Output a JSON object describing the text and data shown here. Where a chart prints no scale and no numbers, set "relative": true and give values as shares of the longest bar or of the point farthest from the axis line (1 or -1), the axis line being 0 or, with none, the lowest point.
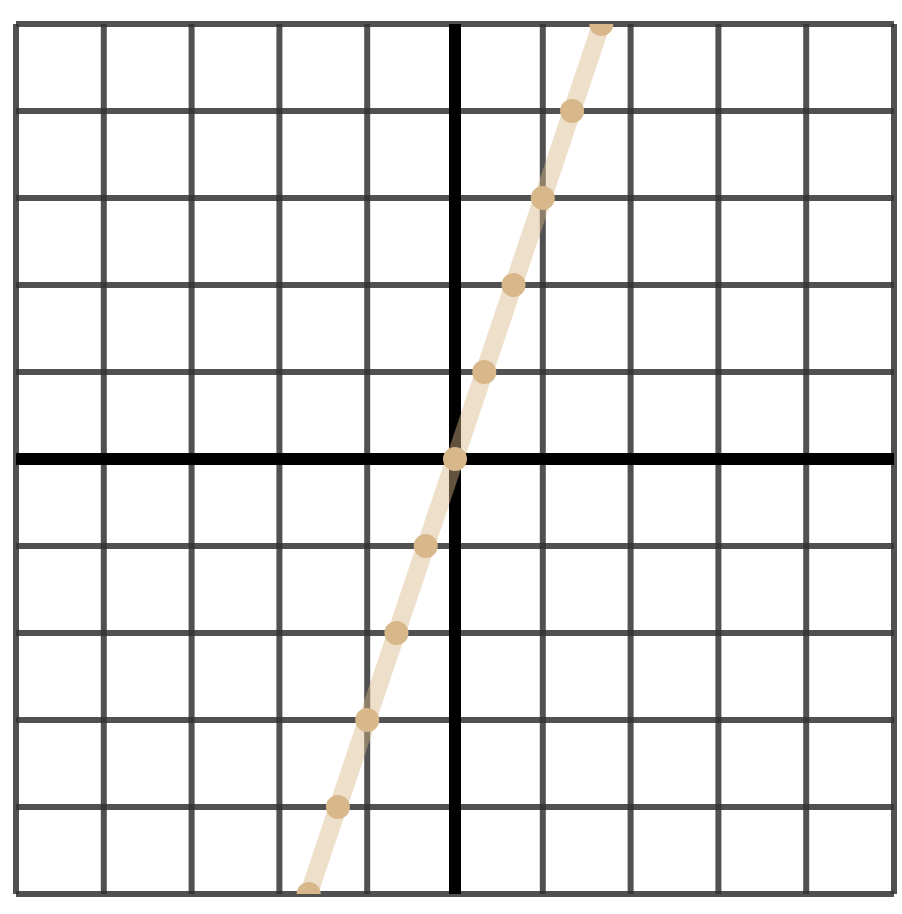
{
  "chart_data": {
    "type": "line",
    "relative": true,
    "grid": true,
    "marker": "circle",
    "line_style": "solid",
    "categories": [
      null,
      null,
      null,
      null,
      null,
      null,
      null,
      null,
      null,
      null,
      null
    ],
    "series": [
      {
        "color": "#d8b78a",
        "values": [
          -1,
          -0.8,
          -0.6,
          -0.4,
          -0.2,
          0,
          0.2,
          0.4,
          0.6,
          0.8,
          1
        ]
      }
    ]
  }
}
